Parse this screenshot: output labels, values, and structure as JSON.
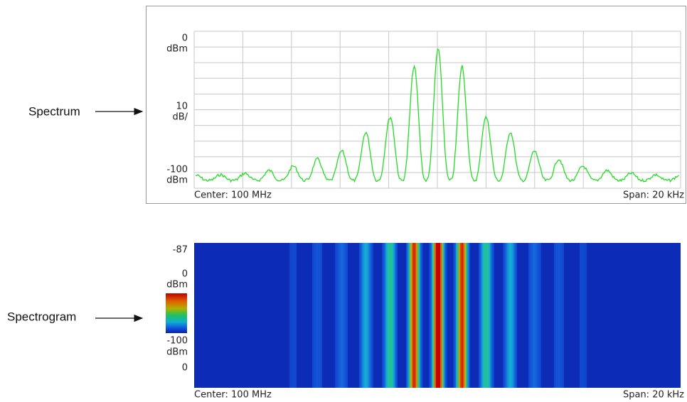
{
  "callouts": {
    "spectrum": "Spectrum",
    "spectrogram": "Spectrogram"
  },
  "spectrum": {
    "top_value": "0",
    "top_unit": "dBm",
    "scale_value": "10",
    "scale_unit": "dB/",
    "bottom_value": "-100",
    "bottom_unit": "dBm",
    "center": "Center: 100 MHz",
    "span": "Span: 20 kHz"
  },
  "spectrogram": {
    "top_time": "-87",
    "top_value": "0",
    "top_unit": "dBm",
    "bottom_value": "-100",
    "bottom_unit": "dBm",
    "bottom_time": "0",
    "center": "Center: 100 MHz",
    "span": "Span: 20 kHz"
  }
}
